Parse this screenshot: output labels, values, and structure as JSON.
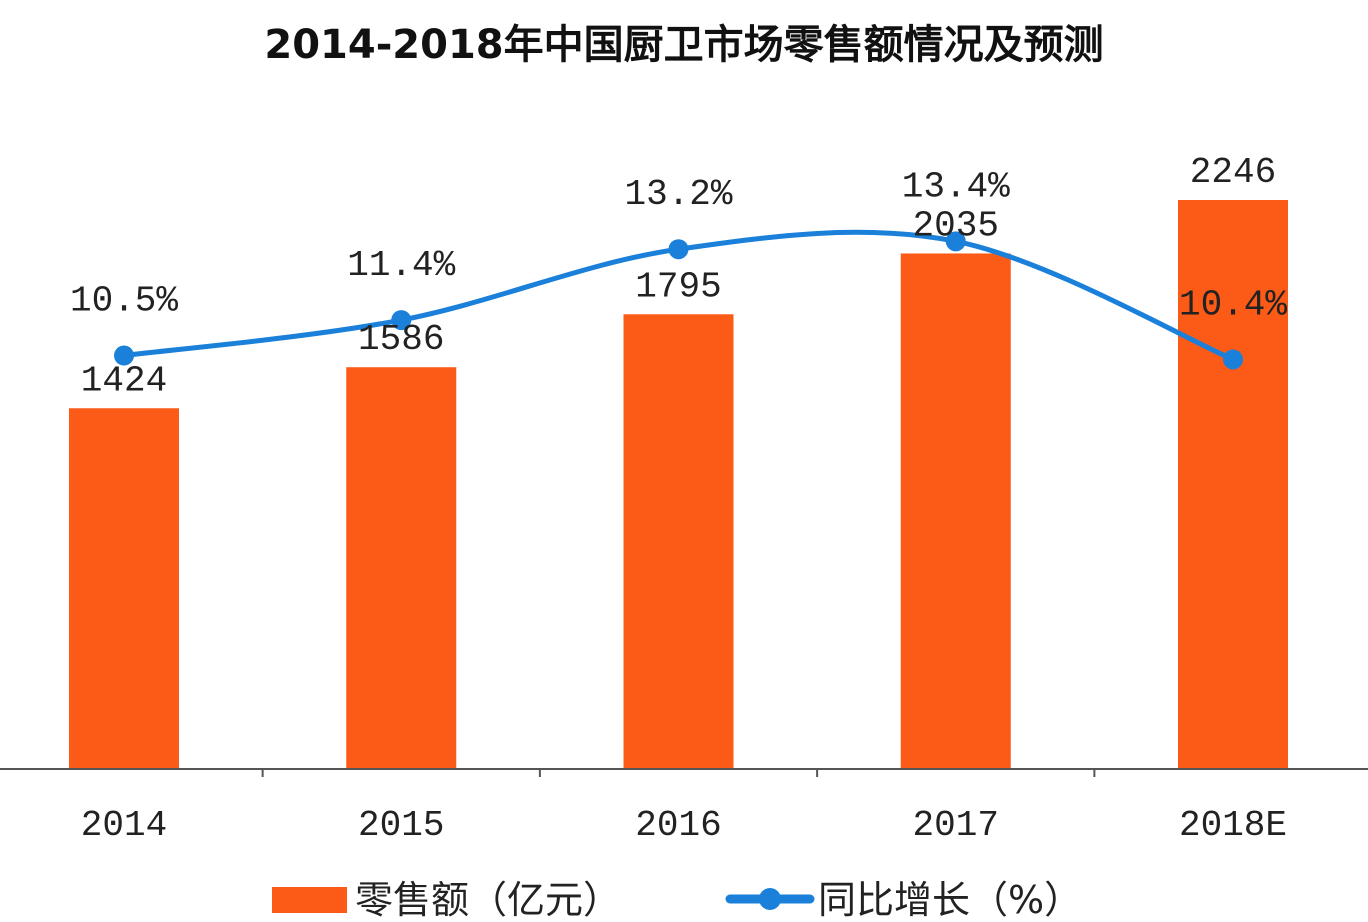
{
  "chart_data": {
    "type": "bar+line",
    "title": "2014-2018年中国厨卫市场零售额情况及预测",
    "categories": [
      "2014",
      "2015",
      "2016",
      "2017",
      "2018E"
    ],
    "series": [
      {
        "name": "零售额（亿元）",
        "type": "bar",
        "axis": "left",
        "values": [
          1424,
          1586,
          1795,
          2035,
          2246
        ],
        "labels": [
          "1424",
          "1586",
          "1795",
          "2035",
          "2246"
        ],
        "color": "#fc5a17"
      },
      {
        "name": "同比增长（%）",
        "type": "line",
        "axis": "right",
        "values": [
          10.5,
          11.4,
          13.2,
          13.4,
          10.4
        ],
        "labels": [
          "10.5%",
          "11.4%",
          "13.2%",
          "13.4%",
          "10.4%"
        ],
        "color": "#1a80d9"
      }
    ],
    "ylim": [
      0,
      3000
    ],
    "y2lim": [
      0,
      19.3
    ],
    "grid": false,
    "legend": "bottom"
  }
}
